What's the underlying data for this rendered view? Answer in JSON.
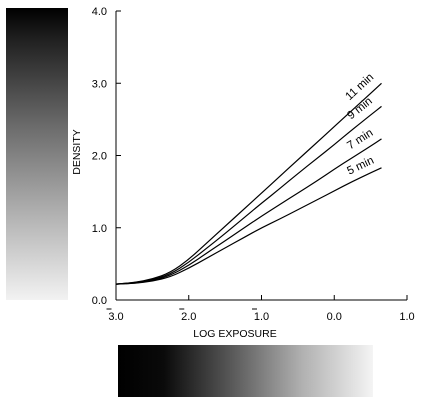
{
  "chart_data": {
    "type": "line",
    "xlabel": "LOG EXPOSURE",
    "ylabel": "DENSITY",
    "xlim": [
      -3.0,
      1.0
    ],
    "ylim": [
      0.0,
      4.0
    ],
    "x_ticks": [
      {
        "value": -3.0,
        "label": "3.0"
      },
      {
        "value": -2.0,
        "label": "2.0"
      },
      {
        "value": -1.0,
        "label": "1.0"
      },
      {
        "value": 0.0,
        "label": "0.0"
      },
      {
        "value": 1.0,
        "label": "1.0"
      }
    ],
    "y_ticks": [
      {
        "value": 0.0,
        "label": "0.0"
      },
      {
        "value": 1.0,
        "label": "1.0"
      },
      {
        "value": 2.0,
        "label": "2.0"
      },
      {
        "value": 3.0,
        "label": "3.0"
      },
      {
        "value": 4.0,
        "label": "4.0"
      }
    ],
    "grid": false,
    "series": [
      {
        "name": "5 min",
        "label": "5 min",
        "x": [
          -3.0,
          -2.75,
          -2.5,
          -2.25,
          -2.0,
          -1.75,
          -1.5,
          -1.25,
          -1.0,
          -0.75,
          -0.5,
          -0.25,
          0.0,
          0.25,
          0.5,
          0.65
        ],
        "y": [
          0.22,
          0.23,
          0.26,
          0.32,
          0.44,
          0.58,
          0.72,
          0.86,
          1.0,
          1.12,
          1.25,
          1.38,
          1.51,
          1.64,
          1.76,
          1.83
        ]
      },
      {
        "name": "7 min",
        "label": "7 min",
        "x": [
          -3.0,
          -2.75,
          -2.5,
          -2.25,
          -2.0,
          -1.75,
          -1.5,
          -1.25,
          -1.0,
          -0.75,
          -0.5,
          -0.25,
          0.0,
          0.25,
          0.5,
          0.65
        ],
        "y": [
          0.22,
          0.23,
          0.27,
          0.34,
          0.48,
          0.65,
          0.82,
          0.99,
          1.16,
          1.32,
          1.48,
          1.64,
          1.81,
          1.97,
          2.13,
          2.23
        ]
      },
      {
        "name": "9 min",
        "label": "9 min",
        "x": [
          -3.0,
          -2.75,
          -2.5,
          -2.25,
          -2.0,
          -1.75,
          -1.5,
          -1.25,
          -1.0,
          -0.75,
          -0.5,
          -0.25,
          0.0,
          0.25,
          0.5,
          0.65
        ],
        "y": [
          0.22,
          0.24,
          0.28,
          0.36,
          0.52,
          0.72,
          0.92,
          1.13,
          1.34,
          1.54,
          1.75,
          1.95,
          2.15,
          2.36,
          2.56,
          2.68
        ]
      },
      {
        "name": "11 min",
        "label": "11 min",
        "x": [
          -3.0,
          -2.75,
          -2.5,
          -2.25,
          -2.0,
          -1.75,
          -1.5,
          -1.25,
          -1.0,
          -0.75,
          -0.5,
          -0.25,
          0.0,
          0.25,
          0.5,
          0.65
        ],
        "y": [
          0.22,
          0.24,
          0.29,
          0.38,
          0.56,
          0.79,
          1.02,
          1.25,
          1.48,
          1.71,
          1.94,
          2.17,
          2.4,
          2.63,
          2.86,
          3.0
        ]
      }
    ]
  }
}
